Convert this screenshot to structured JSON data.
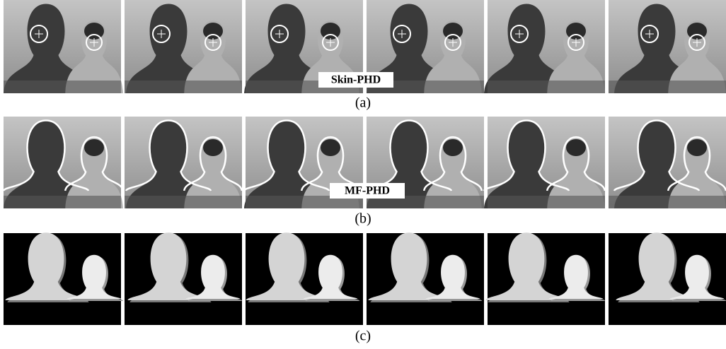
{
  "rows": [
    {
      "caption": "(a)",
      "method_label": "Skin-PHD"
    },
    {
      "caption": "(b)",
      "method_label": "MF-PHD"
    },
    {
      "caption": "(c)"
    }
  ]
}
